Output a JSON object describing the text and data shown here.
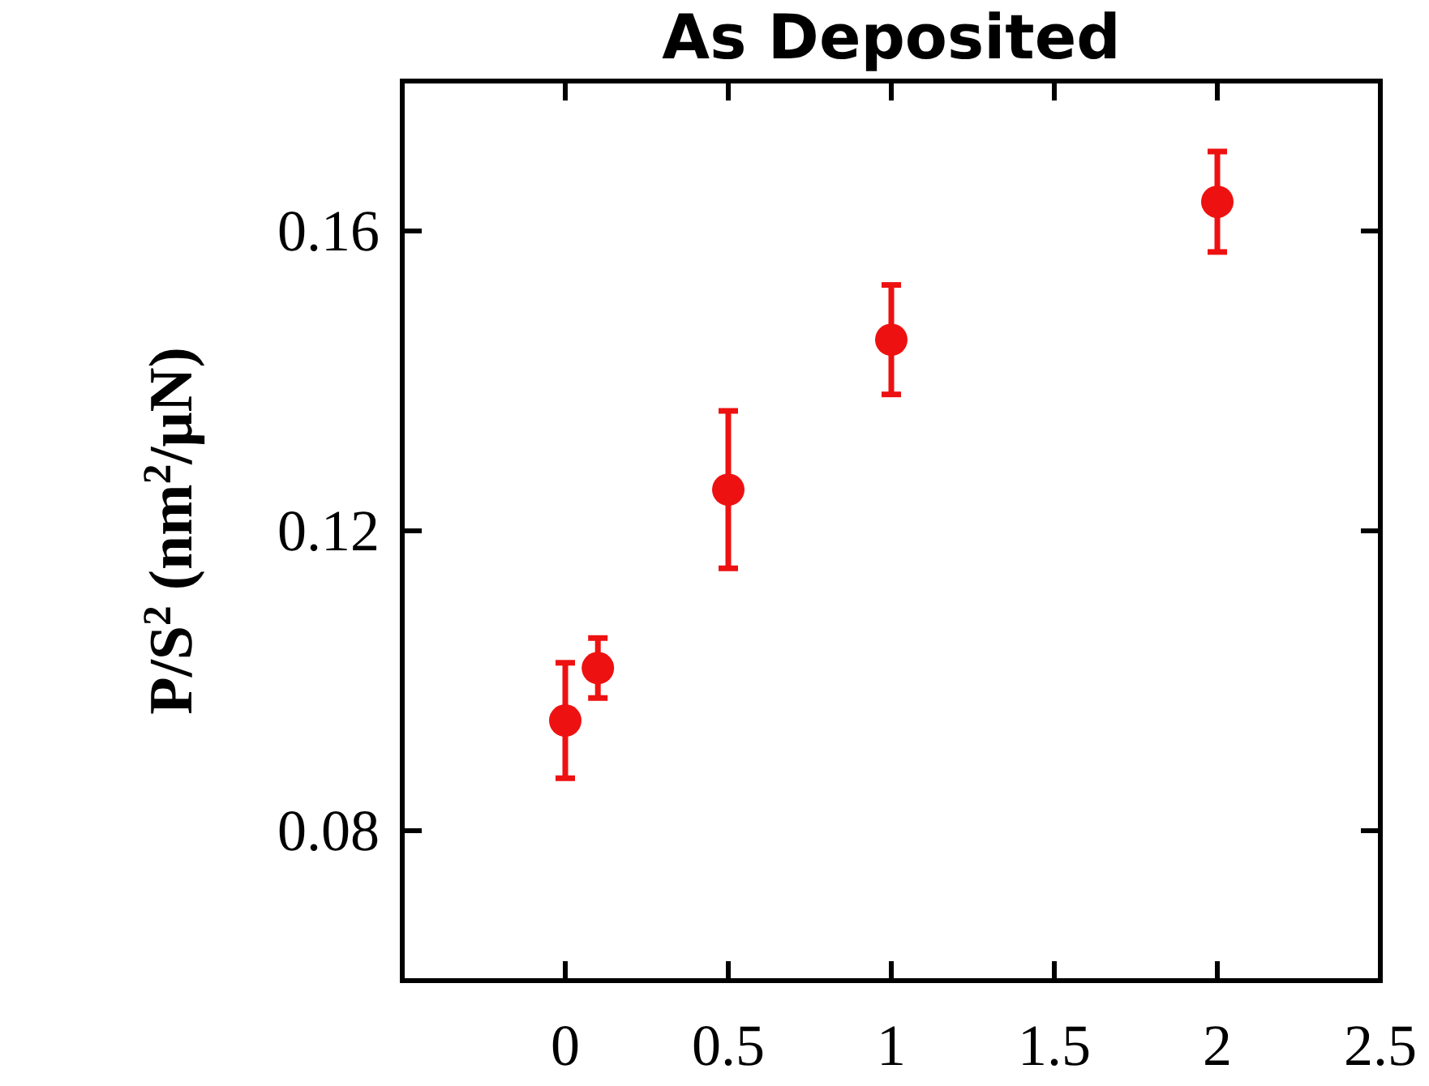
{
  "chart_data": {
    "type": "scatter",
    "title": "As Deposited",
    "ylabel": "P/S$^{2}$ (nm$^{2}$/μN)",
    "x": [
      0,
      0.1,
      0.5,
      1,
      2
    ],
    "series": [
      {
        "color": "#ee1111",
        "values": [
          0.0947,
          0.1017,
          0.1255,
          0.1455,
          0.1639
        ],
        "errors": [
          0.0077,
          0.004,
          0.0105,
          0.0073,
          0.0067
        ]
      }
    ],
    "xlim": [
      -0.5,
      2.5
    ],
    "xticks": [
      0,
      0.5,
      1,
      1.5,
      2,
      2.5
    ],
    "ylim": [
      0.06,
      0.18
    ],
    "yticks": [
      0.08,
      0.12,
      0.16
    ],
    "marker": "circle",
    "grid": false
  }
}
